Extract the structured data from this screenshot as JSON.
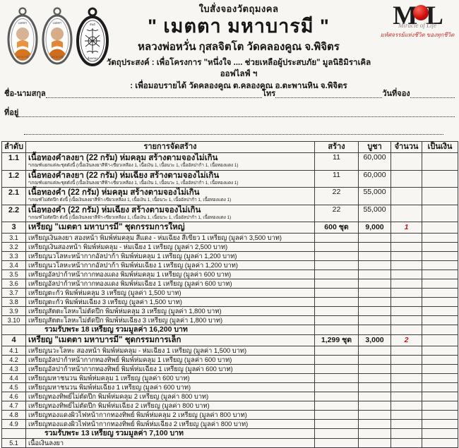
{
  "colors": {
    "accent_red": "#cc1414",
    "ink": "#161616"
  },
  "header": {
    "form_title": "ใบสั่งจองวัตถุมงคล",
    "main_title": "\" เมตตา มหาบารมี \"",
    "subtitle": "หลวงพ่อหวั่น กุสลจิตโต วัดคลองคูณ จ.พิจิตร",
    "purpose_label": "วัตถุประสงค์",
    "purpose_line1": ": เพื่อโครงการ \"หนึ่งใจ .... ช่วยเหลือผู้ประสบภัย\" มูลนิธิมิราเคิล ออฟไลฟ์ ฯ",
    "purpose_line2": ": เพื่อมอบรายได้ วัดคลองคูณ ต.คลองคูณ อ.ตะพานหิน จ.พิจิตร",
    "images": {
      "medallion1": "monk-amulet-front-photo",
      "medallion2": "monk-amulet-front-photo",
      "medallion3": "amulet-yantra-back"
    },
    "logo": {
      "letter_left": "M",
      "letter_right": "L",
      "script": "Miracle of Life",
      "caption": "มหัศจรรย์แห่งชีวิต ของทุกชีวิต"
    }
  },
  "fields": {
    "name_label": "ชื่อ-นามสกุล",
    "phone_label": "โทร",
    "date_label": "วันที่จอง",
    "address_label": "ที่อยู่"
  },
  "table": {
    "headers": [
      "ลำดับ",
      "รายการจัดสร้าง",
      "สร้าง",
      "บูชา",
      "จำนวน",
      "เป็นเงิน"
    ],
    "rows": [
      {
        "type": "item2",
        "no": "1.1",
        "desc": "เนื้อทองคำลงยา (22 กรัม) ห่มคลุม สร้างตามจองไม่เกิน",
        "note": "*เกณฑ์แยกแต่ละชุดดังนี้ (เนื้อเงินลงยาสีฟ้า-เขียวเหลือง 1,  เนื้อเงิน 1, เนื้อนวะ  1, เนื้ออัลปาก้า 1,  เนื้อทองแดง 1)",
        "made": "11",
        "price": "60,000",
        "qty": "",
        "amount": ""
      },
      {
        "type": "item2",
        "no": "1.2",
        "desc": "เนื้อทองคำลงยา (22 กรัม) ห่มเฉียง สร้างตามจองไม่เกิน",
        "note": "*เกณฑ์แยกแต่ละชุดดังนี้ (เนื้อเงินลงยาสีฟ้า-เขียวเหลือง 1,  เนื้อเงิน 1, เนื้อนวะ  1, เนื้ออัลปาก้า 1,  เนื้อทองแดง 1)",
        "made": "11",
        "price": "60,000",
        "qty": "",
        "amount": ""
      },
      {
        "type": "item2",
        "no": "2.1",
        "desc": "เนื้อทองคำ (22 กรัม) ห่มคลุม สร้างตามจองไม่เกิน",
        "note": "*เกณฑ์ไม่ตัดปีก ดังนี้  (เนื้อเงินลงยาสีฟ้า-เขียวเหลือง 1,  เนื้อเงิน 1, เนื้อนวะ  1, เนื้ออัลปาก้า 1,  เนื้อทองแดง 1)",
        "made": "22",
        "price": "55,000",
        "qty": "",
        "amount": ""
      },
      {
        "type": "item2",
        "no": "2.2",
        "desc": "เนื้อทองคำ (22 กรัม) ห่มเฉียง สร้างตามจองไม่เกิน",
        "note": "*เกณฑ์ไม่ตัดปีก ดังนี้  (เนื้อเงินลงยาสีฟ้า-เขียวเหลือง 1,  เนื้อเงิน 1, เนื้อนวะ  1, เนื้ออัลปาก้า 1,  เนื้อทองแดง 1)",
        "made": "22",
        "price": "55,000",
        "qty": "",
        "amount": ""
      },
      {
        "type": "set",
        "no": "3",
        "desc": "เหรียญ \"เมตตา มหาบารมี\" ชุดกรรมการใหญ่",
        "made": "600 ชุด",
        "price": "9,000",
        "qty": "1",
        "qty_red": true,
        "amount": ""
      },
      {
        "type": "sub",
        "no": "3.1",
        "desc": "เหรียญเงินลงยา สองหน้า พิมพ์ห่มคลุม สีแดง - ห่มเฉียง สีเขียว 1 เหรียญ (มูลค่า 3,500 บาท)"
      },
      {
        "type": "sub",
        "no": "3.2",
        "desc": "เหรียญเงินสองหน้า พิมพ์ห่มคลุม - ห่มเฉียง 1 เหรียญ (มูลค่า 2,500 บาท)"
      },
      {
        "type": "sub",
        "no": "3.3",
        "desc": "เหรียญนวโลหะหน้ากากอัลปาก้า พิมพ์ห่มคลุม 1 เหรียญ (มูลค่า 1,200 บาท)"
      },
      {
        "type": "sub",
        "no": "3.4",
        "desc": "เหรียญนวโลหะหน้ากากอัลปาก้า พิมพ์ห่มเฉียง 1 เหรียญ (มูลค่า 1,200 บาท)"
      },
      {
        "type": "sub",
        "no": "3.5",
        "desc": "เหรียญอัลปาก้าหน้ากากทองแดง พิมพ์ห่มคลุม 1 เหรียญ (มูลค่า 600 บาท)"
      },
      {
        "type": "sub",
        "no": "3.6",
        "desc": "เหรียญอัลปาก้าหน้ากากทองแดง พิมพ์ห่มเฉียง 1 เหรียญ (มูลค่า 600 บาท)"
      },
      {
        "type": "sub",
        "no": "3.7",
        "desc": "เหรียญตะกั่ว พิมพ์ห่มคลุม 3 เหรียญ (มูลค่า 1,500 บาท)"
      },
      {
        "type": "sub",
        "no": "3.8",
        "desc": "เหรียญตะกั่ว พิมพ์ห่มเฉียง 3 เหรียญ (มูลค่า 1,500 บาท)"
      },
      {
        "type": "sub",
        "no": "3.9",
        "desc": "เหรียญสัตตะโลหะไม่ตัดปีก พิมพ์ห่มคลุม 3 เหรียญ (มูลค่า 1,800 บาท)"
      },
      {
        "type": "sub",
        "no": "3.10",
        "desc": "เหรียญสัตตะโลหะไม่ตัดปีก พิมพ์ห่มเฉียง 3 เหรียญ (มูลค่า 1,800 บาท)"
      },
      {
        "type": "sum",
        "no": "",
        "desc": "รวมรับพระ 18 เหรียญ รวมมูลค่า 16,200 บาท"
      },
      {
        "type": "set",
        "no": "4",
        "desc": "เหรียญ \"เมตตา มหาบารมี\" ชุดกรรมการเล็ก",
        "made": "1,299 ชุด",
        "price": "3,000",
        "qty": "2",
        "qty_red": true,
        "amount": ""
      },
      {
        "type": "sub",
        "no": "4.1",
        "desc": "เหรียญนวะโลหะ สองหน้า พิมพ์ห่มคลุม - ห่มเฉียง 1 เหรียญ (มูลค่า 1,500 บาท)"
      },
      {
        "type": "sub",
        "no": "4.2",
        "desc": "เหรียญอัลปาก้าหน้ากากทองทิพย์ พิมพ์ห่มคลุม 1 เหรียญ (มูลค่า 600 บาท)"
      },
      {
        "type": "sub",
        "no": "4.3",
        "desc": "เหรียญอัลปาก้าหน้ากากทองทิพย์ พิมพ์ห่มเฉียง 1 เหรียญ (มูลค่า 600 บาท)"
      },
      {
        "type": "sub",
        "no": "4.4",
        "desc": "เหรียญมหาชนวน พิมพ์ห่มคลุม 1 เหรียญ (มูลค่า 600 บาท)"
      },
      {
        "type": "sub",
        "no": "4.5",
        "desc": "เหรียญมหาชนวน พิมพ์ห่มเฉียง 1 เหรียญ (มูลค่า 600 บาท)"
      },
      {
        "type": "sub",
        "no": "4.6",
        "desc": "เหรียญทองทิพย์ไม่ตัดปีก พิมพ์ห่มคลุม 2 เหรียญ (มูลค่า 800 บาท)"
      },
      {
        "type": "sub",
        "no": "4.7",
        "desc": "เหรียญทองทิพย์ไม่ตัดปีก พิมพ์ห่มเฉียง 2 เหรียญ (มูลค่า 800 บาท)"
      },
      {
        "type": "sub",
        "no": "4.8",
        "desc": "เหรียญทองแดงผิวไฟหน้ากากทองทิพย์ พิมพ์ห่มคลุม 2 เหรียญ (มูลค่า 800 บาท)"
      },
      {
        "type": "sub",
        "no": "4.9",
        "desc": "เหรียญทองแดงผิวไฟหน้ากากทองทิพย์ พิมพ์ห่มเฉียง 2 เหรียญ (มูลค่า 800 บาท)"
      },
      {
        "type": "sum",
        "no": "",
        "desc": "รวมรับพระ 13 เหรียญ รวมมูลค่า 7,100 บาท"
      },
      {
        "type": "partial",
        "no": "5.1",
        "desc": "เนื้อเงินลงยา"
      }
    ]
  }
}
